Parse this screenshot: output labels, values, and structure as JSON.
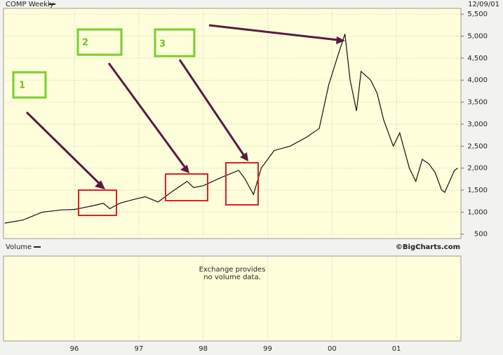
{
  "chart_data": {
    "type": "line",
    "title": "COMP Weekly",
    "date_label": "12/09/01",
    "color": "#111111",
    "x": [
      1994.92,
      1995.2,
      1995.5,
      1995.8,
      1996.0,
      1996.3,
      1996.45,
      1996.55,
      1996.7,
      1996.9,
      1997.1,
      1997.3,
      1997.5,
      1997.75,
      1997.85,
      1998.0,
      1998.3,
      1998.55,
      1998.65,
      1998.78,
      1998.9,
      1999.1,
      1999.35,
      1999.6,
      1999.8,
      1999.95,
      2000.1,
      2000.2,
      2000.28,
      2000.38,
      2000.45,
      2000.6,
      2000.7,
      2000.8,
      2000.95,
      2001.05,
      2001.2,
      2001.3,
      2001.4,
      2001.5,
      2001.6,
      2001.7,
      2001.75,
      2001.9,
      2001.95
    ],
    "values": [
      750,
      820,
      1000,
      1050,
      1060,
      1150,
      1200,
      1080,
      1200,
      1280,
      1350,
      1230,
      1450,
      1700,
      1560,
      1600,
      1800,
      1950,
      1750,
      1400,
      2000,
      2400,
      2500,
      2700,
      2900,
      3900,
      4600,
      5050,
      4000,
      3300,
      4200,
      4000,
      3700,
      3100,
      2500,
      2800,
      2000,
      1700,
      2200,
      2100,
      1900,
      1500,
      1450,
      1950,
      2000
    ],
    "xlim": [
      1994.9,
      2002.0
    ],
    "xticks": [
      {
        "value": 1996,
        "label": "96"
      },
      {
        "value": 1997,
        "label": "97"
      },
      {
        "value": 1998,
        "label": "98"
      },
      {
        "value": 1999,
        "label": "99"
      },
      {
        "value": 2000,
        "label": "00"
      },
      {
        "value": 2001,
        "label": "01"
      }
    ],
    "ylim": [
      400,
      5630
    ],
    "yticks": [
      500,
      {
        "value": 1000,
        "label": "1,000"
      },
      {
        "value": 1500,
        "label": "1,500"
      },
      {
        "value": 2000,
        "label": "2,000"
      },
      {
        "value": 2500,
        "label": "2,500"
      },
      {
        "value": 3000,
        "label": "3,000"
      },
      {
        "value": 3500,
        "label": "3,500"
      },
      {
        "value": 4000,
        "label": "4,000"
      },
      {
        "value": 4500,
        "label": "4,500"
      },
      {
        "value": 5000,
        "label": "5,000"
      },
      {
        "value": 5500,
        "label": "5,500"
      }
    ],
    "grid": true,
    "annotations": [
      "1",
      "2",
      "3"
    ],
    "volume_panel": {
      "title": "Volume",
      "credit": "©BigCharts.com",
      "message": [
        "Exchange provides",
        "no volume data."
      ]
    }
  }
}
